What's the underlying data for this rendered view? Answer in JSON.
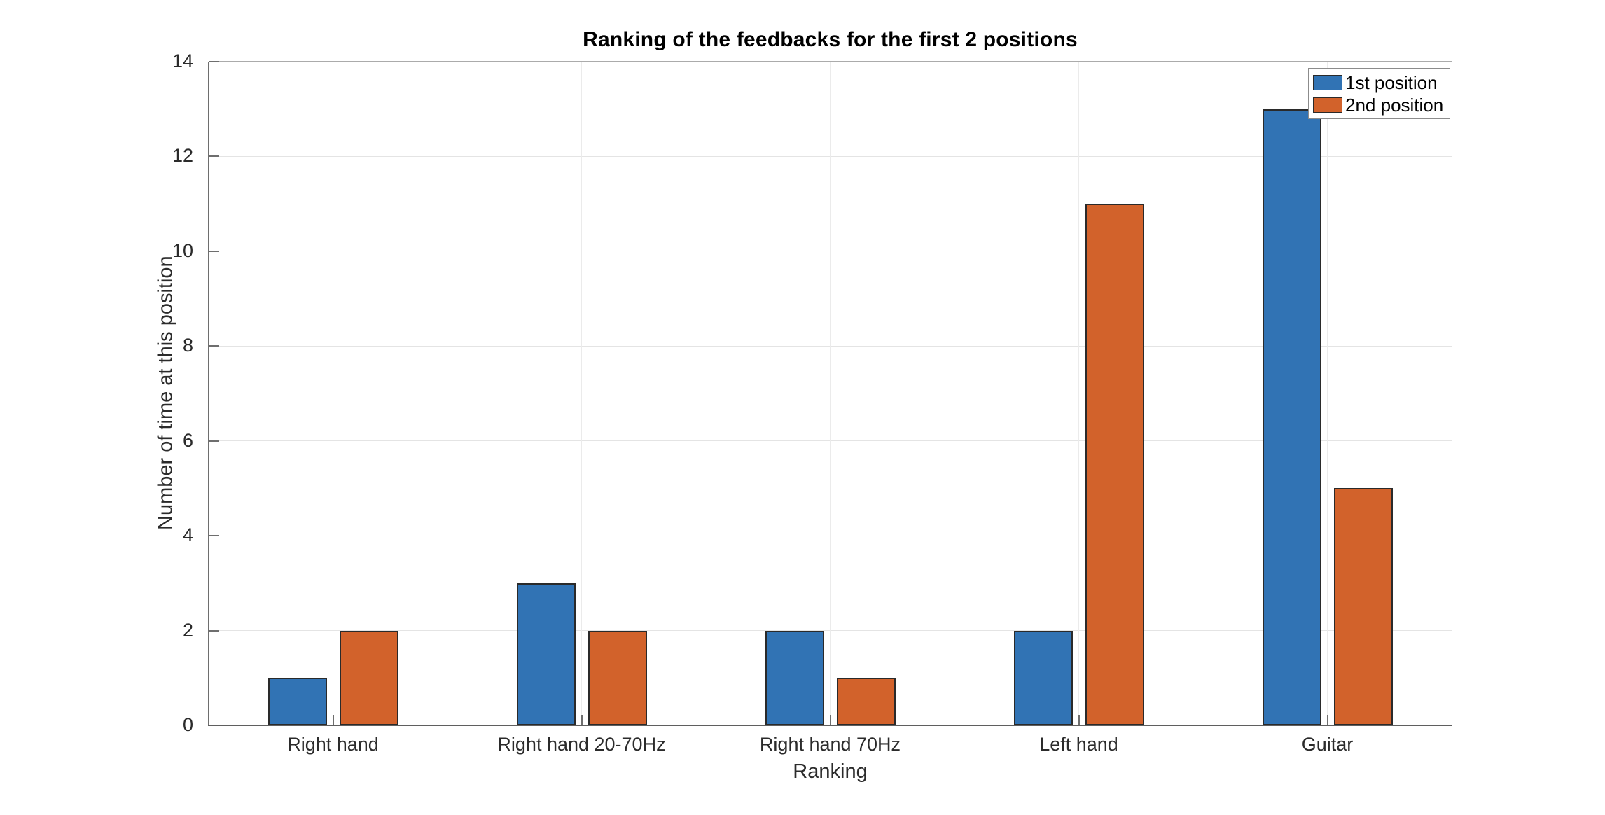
{
  "chart_data": {
    "type": "bar",
    "title": "Ranking of the feedbacks for the first 2 positions",
    "xlabel": "Ranking",
    "ylabel": "Number of time at this position",
    "categories": [
      "Right hand",
      "Right hand 20-70Hz",
      "Right hand 70Hz",
      "Left hand",
      "Guitar"
    ],
    "series": [
      {
        "name": "1st position",
        "color": "#3173b4",
        "values": [
          1,
          3,
          2,
          2,
          13
        ]
      },
      {
        "name": "2nd position",
        "color": "#d2622b",
        "values": [
          2,
          2,
          1,
          11,
          5
        ]
      }
    ],
    "ylim": [
      0,
      14
    ],
    "yticks": [
      0,
      2,
      4,
      6,
      8,
      10,
      12,
      14
    ],
    "grid": true,
    "legend_position": "top-right",
    "bar_edge_color": "#2a2a2a",
    "axis_color": "#6e6e6e",
    "grid_color": "#e4e4e4"
  }
}
